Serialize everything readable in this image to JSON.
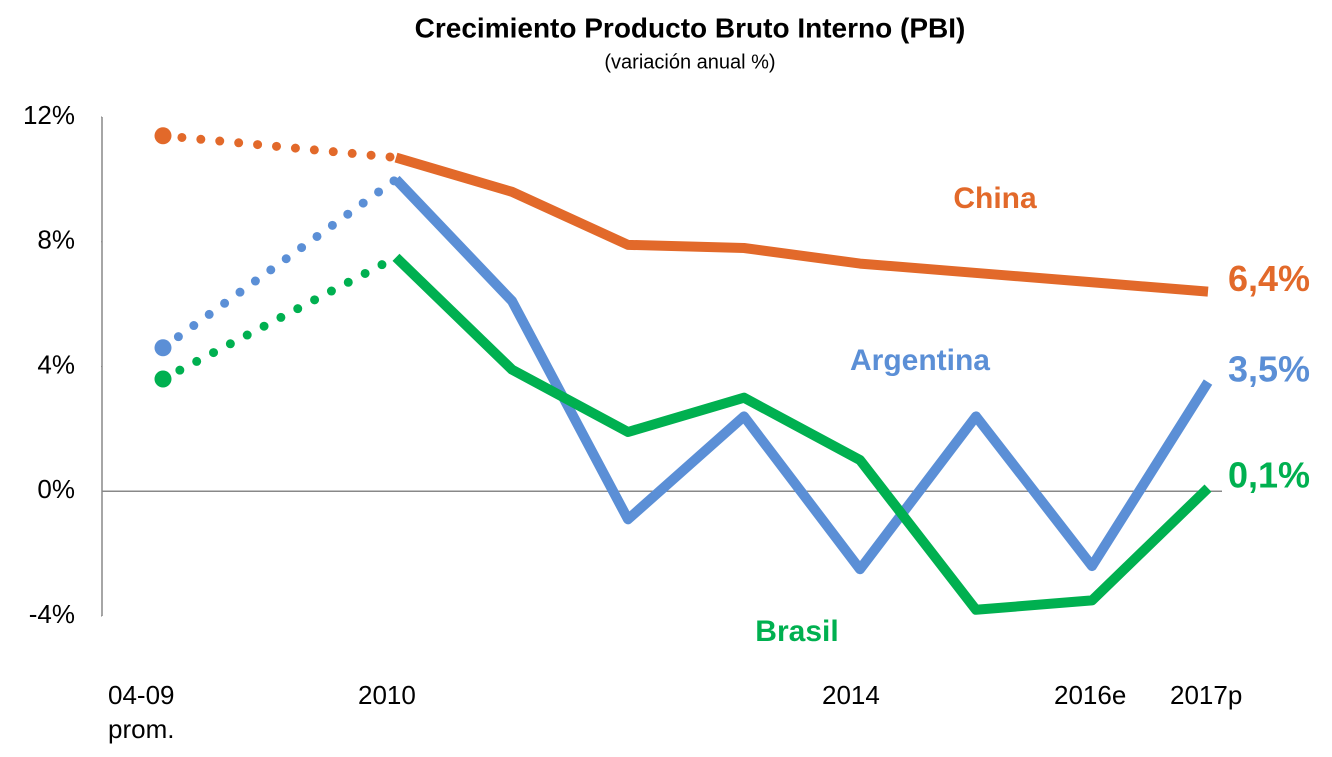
{
  "chart_data": {
    "type": "line",
    "title": "Crecimiento Producto Bruto Interno (PBI)",
    "subtitle": "(variación anual %)",
    "categories": [
      "04-09 prom.",
      "2010",
      null,
      null,
      null,
      "2014",
      null,
      "2016e",
      "2017p"
    ],
    "series": [
      {
        "name": "China",
        "color": "#e2692a",
        "values": [
          11.4,
          10.7,
          9.6,
          7.9,
          7.8,
          7.3,
          7.0,
          6.7,
          6.4
        ],
        "value_labels": [
          null,
          null,
          null,
          null,
          null,
          null,
          null,
          null,
          "6,4%"
        ]
      },
      {
        "name": "Argentina",
        "color": "#5b8fd6",
        "values": [
          4.6,
          10.0,
          6.1,
          -0.9,
          2.4,
          -2.5,
          2.4,
          -2.4,
          3.5
        ],
        "value_labels": [
          null,
          null,
          null,
          null,
          null,
          null,
          null,
          null,
          "3,5%"
        ]
      },
      {
        "name": "Brasil",
        "color": "#00b050",
        "values": [
          3.6,
          7.5,
          3.9,
          1.9,
          3.0,
          1.0,
          -3.8,
          -3.5,
          0.1
        ],
        "value_labels": [
          null,
          null,
          null,
          null,
          null,
          null,
          null,
          null,
          "0,1%"
        ]
      }
    ],
    "ylim": [
      -4,
      12
    ],
    "yticks": [
      {
        "value": -4,
        "label": "-4%"
      },
      {
        "value": 0,
        "label": "0%"
      },
      {
        "value": 4,
        "label": "4%"
      },
      {
        "value": 8,
        "label": "8%"
      },
      {
        "value": 12,
        "label": "12%"
      }
    ]
  }
}
